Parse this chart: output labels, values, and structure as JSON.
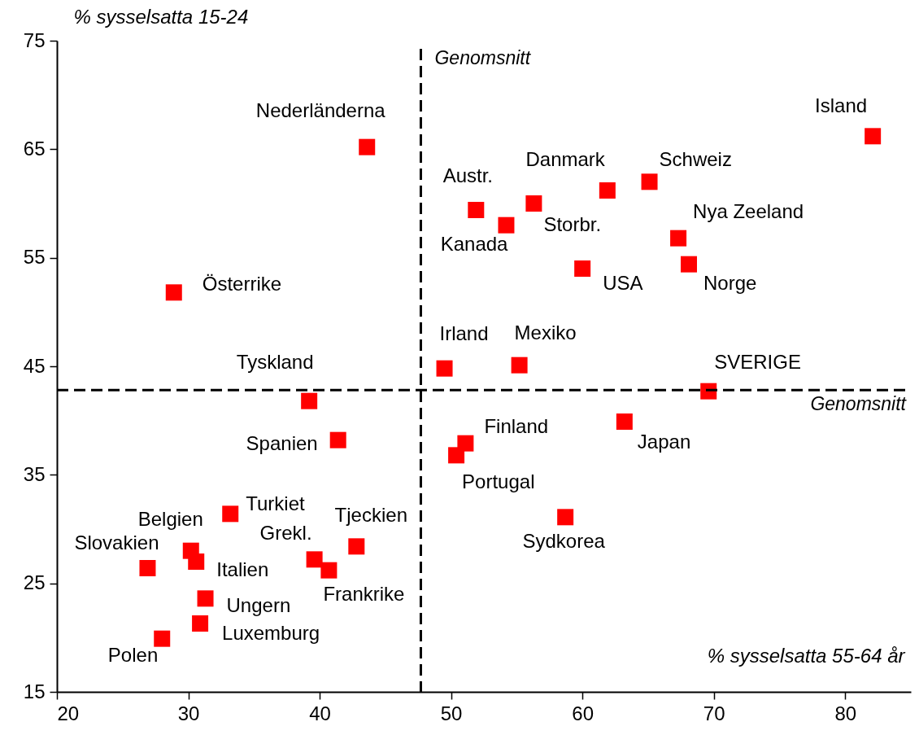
{
  "chart_data": {
    "type": "scatter",
    "xlabel": "% sysselsatta 55-64 år",
    "ylabel": "% sysselsatta 15-24",
    "marker": "square",
    "xlim": [
      20,
      85
    ],
    "xticks": [
      20,
      30,
      40,
      50,
      60,
      70,
      80
    ],
    "ylim": [
      15,
      75
    ],
    "yticks": [
      15,
      25,
      35,
      45,
      55,
      65,
      75
    ],
    "series": [
      {
        "name": "Nederländerna",
        "color": "#ff0000",
        "x": [
          43.6
        ],
        "values": [
          65.2
        ]
      },
      {
        "name": "Island",
        "color": "#ff0000",
        "x": [
          82.1
        ],
        "values": [
          66.2
        ]
      },
      {
        "name": "Schweiz",
        "color": "#ff0000",
        "x": [
          65.1
        ],
        "values": [
          62.0
        ]
      },
      {
        "name": "Danmark",
        "color": "#ff0000",
        "x": [
          61.9
        ],
        "values": [
          61.2
        ]
      },
      {
        "name": "Storbr.",
        "color": "#ff0000",
        "x": [
          56.3
        ],
        "values": [
          60.0
        ]
      },
      {
        "name": "Austr.",
        "color": "#ff0000",
        "x": [
          51.9
        ],
        "values": [
          59.4
        ]
      },
      {
        "name": "Kanada",
        "color": "#ff0000",
        "x": [
          54.2
        ],
        "values": [
          58.0
        ]
      },
      {
        "name": "Nya Zeeland",
        "color": "#ff0000",
        "x": [
          67.3
        ],
        "values": [
          56.8
        ]
      },
      {
        "name": "Norge",
        "color": "#ff0000",
        "x": [
          68.1
        ],
        "values": [
          54.4
        ]
      },
      {
        "name": "USA",
        "color": "#ff0000",
        "x": [
          60.0
        ],
        "values": [
          54.0
        ]
      },
      {
        "name": "Österrike",
        "color": "#ff0000",
        "x": [
          28.9
        ],
        "values": [
          51.8
        ]
      },
      {
        "name": "Irland",
        "color": "#ff0000",
        "x": [
          49.5
        ],
        "values": [
          44.8
        ]
      },
      {
        "name": "Mexiko",
        "color": "#ff0000",
        "x": [
          55.2
        ],
        "values": [
          45.1
        ]
      },
      {
        "name": "SVERIGE",
        "color": "#ff0000",
        "x": [
          69.6
        ],
        "values": [
          42.7
        ]
      },
      {
        "name": "Tyskland",
        "color": "#ff0000",
        "x": [
          39.2
        ],
        "values": [
          41.8
        ]
      },
      {
        "name": "Japan",
        "color": "#ff0000",
        "x": [
          63.2
        ],
        "values": [
          39.9
        ]
      },
      {
        "name": "Spanien",
        "color": "#ff0000",
        "x": [
          41.4
        ],
        "values": [
          38.2
        ]
      },
      {
        "name": "Finland",
        "color": "#ff0000",
        "x": [
          51.1
        ],
        "values": [
          37.9
        ]
      },
      {
        "name": "Portugal",
        "color": "#ff0000",
        "x": [
          50.4
        ],
        "values": [
          36.8
        ]
      },
      {
        "name": "Turkiet",
        "color": "#ff0000",
        "x": [
          33.2
        ],
        "values": [
          31.4
        ]
      },
      {
        "name": "Sydkorea",
        "color": "#ff0000",
        "x": [
          58.7
        ],
        "values": [
          31.1
        ]
      },
      {
        "name": "Tjeckien",
        "color": "#ff0000",
        "x": [
          42.8
        ],
        "values": [
          28.4
        ]
      },
      {
        "name": "Belgien",
        "color": "#ff0000",
        "x": [
          30.2
        ],
        "values": [
          28.0
        ]
      },
      {
        "name": "Grekl.",
        "color": "#ff0000",
        "x": [
          39.6
        ],
        "values": [
          27.2
        ]
      },
      {
        "name": "Italien",
        "color": "#ff0000",
        "x": [
          30.6
        ],
        "values": [
          27.0
        ]
      },
      {
        "name": "Slovakien",
        "color": "#ff0000",
        "x": [
          26.9
        ],
        "values": [
          26.4
        ]
      },
      {
        "name": "Frankrike",
        "color": "#ff0000",
        "x": [
          40.7
        ],
        "values": [
          26.2
        ]
      },
      {
        "name": "Ungern",
        "color": "#ff0000",
        "x": [
          31.3
        ],
        "values": [
          23.6
        ]
      },
      {
        "name": "Luxemburg",
        "color": "#ff0000",
        "x": [
          30.9
        ],
        "values": [
          21.3
        ]
      },
      {
        "name": "Polen",
        "color": "#ff0000",
        "x": [
          28.0
        ],
        "values": [
          19.9
        ]
      }
    ],
    "ref_lines": [
      {
        "axis": "x",
        "value": 47.7,
        "label": "Genomsnitt",
        "color": "#000000",
        "line_style": "dashed"
      },
      {
        "axis": "y",
        "value": 42.8,
        "label": "Genomsnitt",
        "color": "#000000",
        "line_style": "dashed"
      }
    ]
  }
}
